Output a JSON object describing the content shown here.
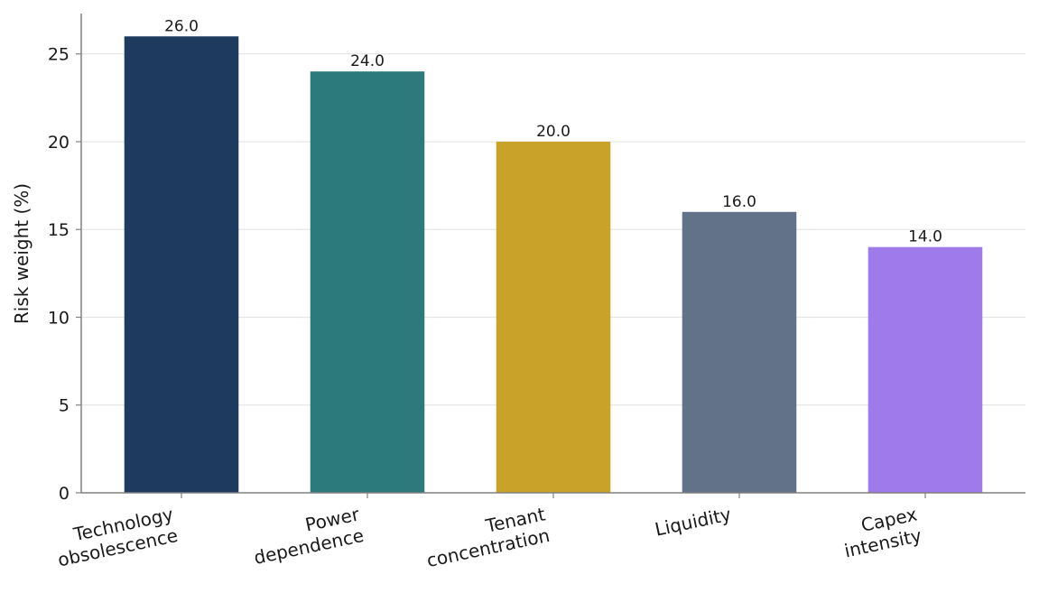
{
  "chart_data": {
    "type": "bar",
    "categories": [
      [
        "Technology",
        "obsolescence"
      ],
      [
        "Power",
        "dependence"
      ],
      [
        "Tenant",
        "concentration"
      ],
      [
        "Liquidity"
      ],
      [
        "Capex",
        "intensity"
      ]
    ],
    "values": [
      26.0,
      24.0,
      20.0,
      16.0,
      14.0
    ],
    "value_labels": [
      "26.0",
      "24.0",
      "20.0",
      "16.0",
      "14.0"
    ],
    "colors": [
      "#1f3a5f",
      "#2c7a7b",
      "#c9a22a",
      "#627389",
      "#9f7aea"
    ],
    "title": "",
    "xlabel": "",
    "ylabel": "Risk weight (%)",
    "ylim": [
      0,
      27.3
    ],
    "yticks": [
      0,
      5,
      10,
      15,
      20,
      25
    ],
    "ytick_labels": [
      "0",
      "5",
      "10",
      "15",
      "20",
      "25"
    ],
    "grid": "horizontal",
    "gridColor": "#e6e6e6",
    "axisColor": "#808080",
    "legend": "none"
  }
}
